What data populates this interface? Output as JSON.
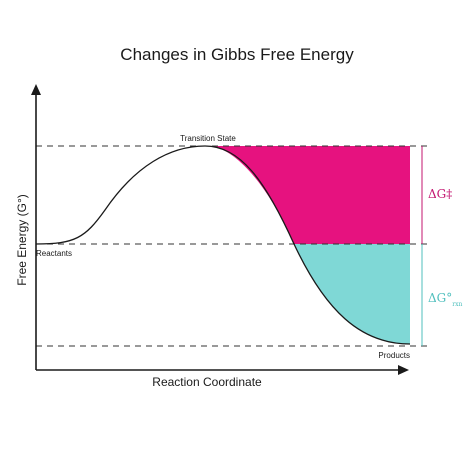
{
  "title": "Changes in Gibbs Free Energy",
  "x_axis_label": "Reaction Coordinate",
  "y_axis_label": "Free Energy (G°)",
  "labels": {
    "transition_state": "Transition State",
    "reactants": "Reactants",
    "products": "Products",
    "activation_energy": "ΔG‡",
    "reaction_energy_main": "ΔG°",
    "reaction_energy_sub": "rxn"
  },
  "colors": {
    "activation_fill": "#e6127f",
    "reaction_fill": "#7fd8d6",
    "activation_text": "#c3146f",
    "reaction_text": "#4fbfbd",
    "line": "#1a1a1a"
  }
}
